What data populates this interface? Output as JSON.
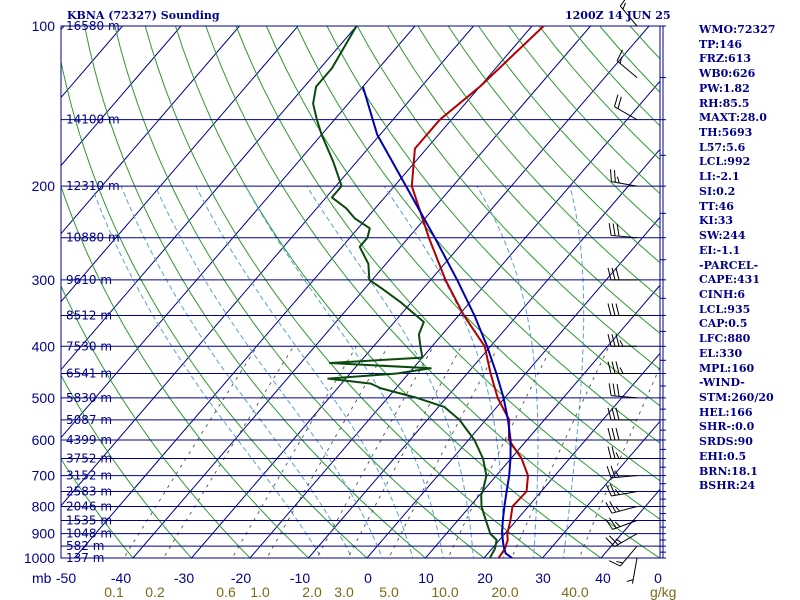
{
  "header": {
    "station": "KBNA (72327) Sounding",
    "time": "1200Z 14 JUN 25"
  },
  "indices": [
    "WMO:72327",
    "TP:146",
    "FRZ:613",
    "WB0:626",
    "PW:1.82",
    "RH:85.5",
    "MAXT:28.0",
    "TH:5693",
    "L57:5.6",
    "LCL:992",
    "LI:-2.1",
    "SI:0.2",
    "TT:46",
    "KI:33",
    "SW:244",
    "EI:-1.1",
    "-PARCEL-",
    "CAPE:431",
    "CINH:6",
    "LCL:935",
    "CAP:0.5",
    "LFC:880",
    "EL:330",
    "MPL:160",
    "-WIND-",
    "STM:260/20",
    "HEL:166",
    "SHR-:0.0",
    "SRDS:90",
    "EHI:0.5",
    "BRN:18.1",
    "BSHR:24"
  ],
  "colors": {
    "isobar": "#00008b",
    "isotherm": "#00008b",
    "dry_adiabat": "#2e9a2e",
    "moist_adiabat": "#5aa0d0",
    "mixing_ratio": "#606060",
    "temperature": "#b00000",
    "dewpoint": "#0a4a0a",
    "parcel": "#0000b0",
    "text": "#00008b",
    "x_tick": "#00008b",
    "mixing_label": "#7a6a1a"
  },
  "chart_data": {
    "type": "skew-t",
    "y_unit_label": "mb",
    "x_unit_label": "g/kg",
    "pressure_ticks": [
      100,
      200,
      300,
      400,
      500,
      600,
      700,
      800,
      900,
      1000
    ],
    "temperature_ticks": [
      -50,
      -40,
      -30,
      -20,
      -10,
      0,
      10,
      20,
      30,
      40,
      0
    ],
    "mixing_ratio_labels": [
      "0.1",
      "0.2",
      "0.6",
      "1.0",
      "2.0",
      "3.0",
      "5.0",
      "10.0",
      "20.0",
      "40.0"
    ],
    "height_levels": [
      {
        "p": 100,
        "label": "16580 m"
      },
      {
        "p": 150,
        "label": "14100 m"
      },
      {
        "p": 200,
        "label": "12310 m"
      },
      {
        "p": 250,
        "label": "10880 m"
      },
      {
        "p": 300,
        "label": "9610 m"
      },
      {
        "p": 350,
        "label": "8512 m"
      },
      {
        "p": 400,
        "label": "7530 m"
      },
      {
        "p": 450,
        "label": "6541 m"
      },
      {
        "p": 500,
        "label": "5830 m"
      },
      {
        "p": 550,
        "label": "5087 m"
      },
      {
        "p": 600,
        "label": "4399 m"
      },
      {
        "p": 650,
        "label": "3752 m"
      },
      {
        "p": 700,
        "label": "3152 m"
      },
      {
        "p": 750,
        "label": "2583 m"
      },
      {
        "p": 800,
        "label": "2046 m"
      },
      {
        "p": 850,
        "label": "1535 m"
      },
      {
        "p": 900,
        "label": "1048 m"
      },
      {
        "p": 950,
        "label": "582 m"
      },
      {
        "p": 1000,
        "label": "137 m"
      }
    ],
    "series": [
      {
        "key": "temperature",
        "points": [
          [
            1000,
            22.5
          ],
          [
            960,
            22.2
          ],
          [
            925,
            21.4
          ],
          [
            900,
            20.4
          ],
          [
            850,
            19.0
          ],
          [
            800,
            17.3
          ],
          [
            750,
            17.5
          ],
          [
            700,
            15.4
          ],
          [
            650,
            11.8
          ],
          [
            600,
            6.9
          ],
          [
            550,
            4.0
          ],
          [
            500,
            -1.2
          ],
          [
            450,
            -6.0
          ],
          [
            400,
            -11.0
          ],
          [
            350,
            -19.1
          ],
          [
            300,
            -27.5
          ],
          [
            250,
            -36.5
          ],
          [
            200,
            -47.0
          ],
          [
            170,
            -52.0
          ],
          [
            150,
            -52.0
          ],
          [
            130,
            -50.0
          ],
          [
            100,
            -48.0
          ]
        ]
      },
      {
        "key": "dewpoint",
        "points": [
          [
            1000,
            21.0
          ],
          [
            960,
            20.5
          ],
          [
            925,
            19.5
          ],
          [
            900,
            17.5
          ],
          [
            850,
            14.8
          ],
          [
            800,
            12.0
          ],
          [
            760,
            10.2
          ],
          [
            750,
            10.0
          ],
          [
            700,
            8.3
          ],
          [
            650,
            5.2
          ],
          [
            600,
            1.0
          ],
          [
            550,
            -4.5
          ],
          [
            520,
            -9.0
          ],
          [
            500,
            -15.0
          ],
          [
            480,
            -22.5
          ],
          [
            470,
            -25.0
          ],
          [
            460,
            -33.0
          ],
          [
            450,
            -22.0
          ],
          [
            440,
            -17.0
          ],
          [
            430,
            -35.0
          ],
          [
            420,
            -20.0
          ],
          [
            400,
            -22.0
          ],
          [
            380,
            -24.0
          ],
          [
            360,
            -25.0
          ],
          [
            330,
            -32.0
          ],
          [
            310,
            -37.5
          ],
          [
            300,
            -40.5
          ],
          [
            280,
            -43.0
          ],
          [
            260,
            -47.0
          ],
          [
            250,
            -47.0
          ],
          [
            240,
            -48.0
          ],
          [
            230,
            -52.0
          ],
          [
            220,
            -55.0
          ],
          [
            210,
            -59.0
          ],
          [
            200,
            -59.0
          ],
          [
            180,
            -64.0
          ],
          [
            160,
            -70.0
          ],
          [
            150,
            -73.0
          ],
          [
            140,
            -76.0
          ],
          [
            130,
            -78.0
          ],
          [
            120,
            -78.0
          ],
          [
            100,
            -80.0
          ]
        ]
      },
      {
        "key": "parcel",
        "points": [
          [
            1000,
            24.8
          ],
          [
            980,
            23.0
          ],
          [
            950,
            21.6
          ],
          [
            900,
            19.5
          ],
          [
            850,
            17.7
          ],
          [
            800,
            15.9
          ],
          [
            750,
            14.1
          ],
          [
            700,
            12.2
          ],
          [
            650,
            9.9
          ],
          [
            600,
            7.2
          ],
          [
            550,
            3.8
          ],
          [
            500,
            -0.2
          ],
          [
            450,
            -5.0
          ],
          [
            400,
            -10.6
          ],
          [
            350,
            -17.3
          ],
          [
            300,
            -25.5
          ],
          [
            250,
            -35.5
          ],
          [
            200,
            -48.0
          ],
          [
            160,
            -60.5
          ],
          [
            130,
            -70.0
          ]
        ]
      }
    ],
    "wind_barbs": [
      {
        "p": 1000,
        "dir": 190,
        "spd": 5
      },
      {
        "p": 950,
        "dir": 220,
        "spd": 15
      },
      {
        "p": 900,
        "dir": 240,
        "spd": 25
      },
      {
        "p": 850,
        "dir": 250,
        "spd": 25
      },
      {
        "p": 800,
        "dir": 255,
        "spd": 25
      },
      {
        "p": 750,
        "dir": 260,
        "spd": 25
      },
      {
        "p": 700,
        "dir": 265,
        "spd": 25
      },
      {
        "p": 650,
        "dir": 270,
        "spd": 25
      },
      {
        "p": 600,
        "dir": 270,
        "spd": 30
      },
      {
        "p": 550,
        "dir": 270,
        "spd": 30
      },
      {
        "p": 500,
        "dir": 275,
        "spd": 30
      },
      {
        "p": 450,
        "dir": 270,
        "spd": 35
      },
      {
        "p": 400,
        "dir": 270,
        "spd": 35
      },
      {
        "p": 350,
        "dir": 270,
        "spd": 30
      },
      {
        "p": 300,
        "dir": 270,
        "spd": 30
      },
      {
        "p": 250,
        "dir": 275,
        "spd": 30
      },
      {
        "p": 200,
        "dir": 280,
        "spd": 25
      },
      {
        "p": 150,
        "dir": 300,
        "spd": 20
      },
      {
        "p": 125,
        "dir": 310,
        "spd": 15
      },
      {
        "p": 100,
        "dir": 320,
        "spd": 15
      }
    ]
  }
}
